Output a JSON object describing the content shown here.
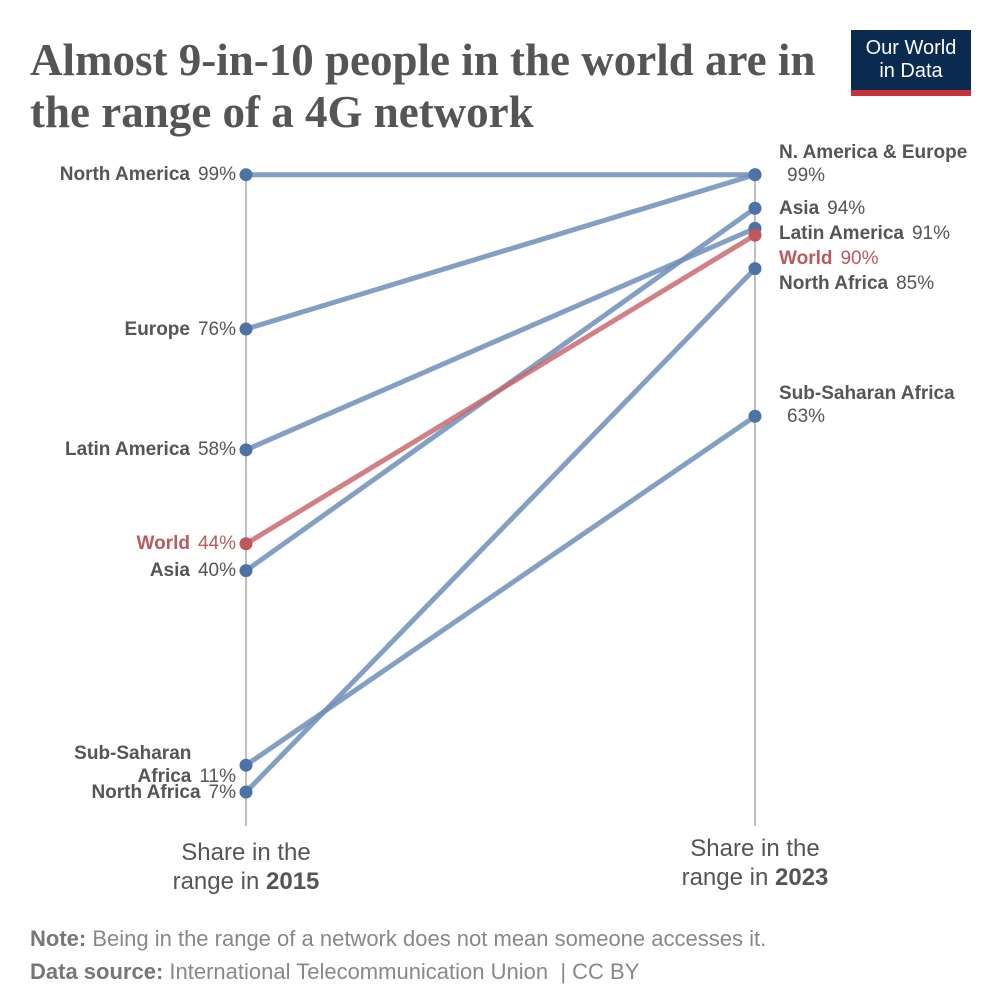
{
  "chart_data": {
    "type": "slope",
    "title": "Almost 9-in-10 people in the world are in the range of a 4G network",
    "logo": "Our World in Data",
    "xlabel": "Share in the range in",
    "categories": [
      "2015",
      "2023"
    ],
    "ylim": [
      0,
      100
    ],
    "series": [
      {
        "name": "North America",
        "color": "#6f8fba",
        "values": [
          99,
          99
        ],
        "start_label": "99%",
        "end_name": "N. America & Europe",
        "end_label": "99%"
      },
      {
        "name": "Europe",
        "color": "#6f8fba",
        "values": [
          76,
          99
        ],
        "start_label": "76%"
      },
      {
        "name": "Latin America",
        "color": "#6f8fba",
        "values": [
          58,
          91
        ],
        "start_label": "58%",
        "end_label": "91%"
      },
      {
        "name": "World",
        "color": "#c96a6e",
        "values": [
          44,
          90
        ],
        "start_label": "44%",
        "end_label": "90%"
      },
      {
        "name": "Asia",
        "color": "#6f8fba",
        "values": [
          40,
          94
        ],
        "start_label": "40%",
        "end_label": "94%"
      },
      {
        "name": "Sub-Saharan Africa",
        "color": "#6f8fba",
        "values": [
          11,
          63
        ],
        "start_label": "11%",
        "end_label": "63%"
      },
      {
        "name": "North Africa",
        "color": "#6f8fba",
        "values": [
          7,
          85
        ],
        "start_label": "7%",
        "end_label": "85%"
      }
    ],
    "note_label": "Note:",
    "note": "Being in the range of a network does not mean someone accesses it.",
    "source_label": "Data source:",
    "source": "International Telecommunication Union  | CC BY"
  }
}
